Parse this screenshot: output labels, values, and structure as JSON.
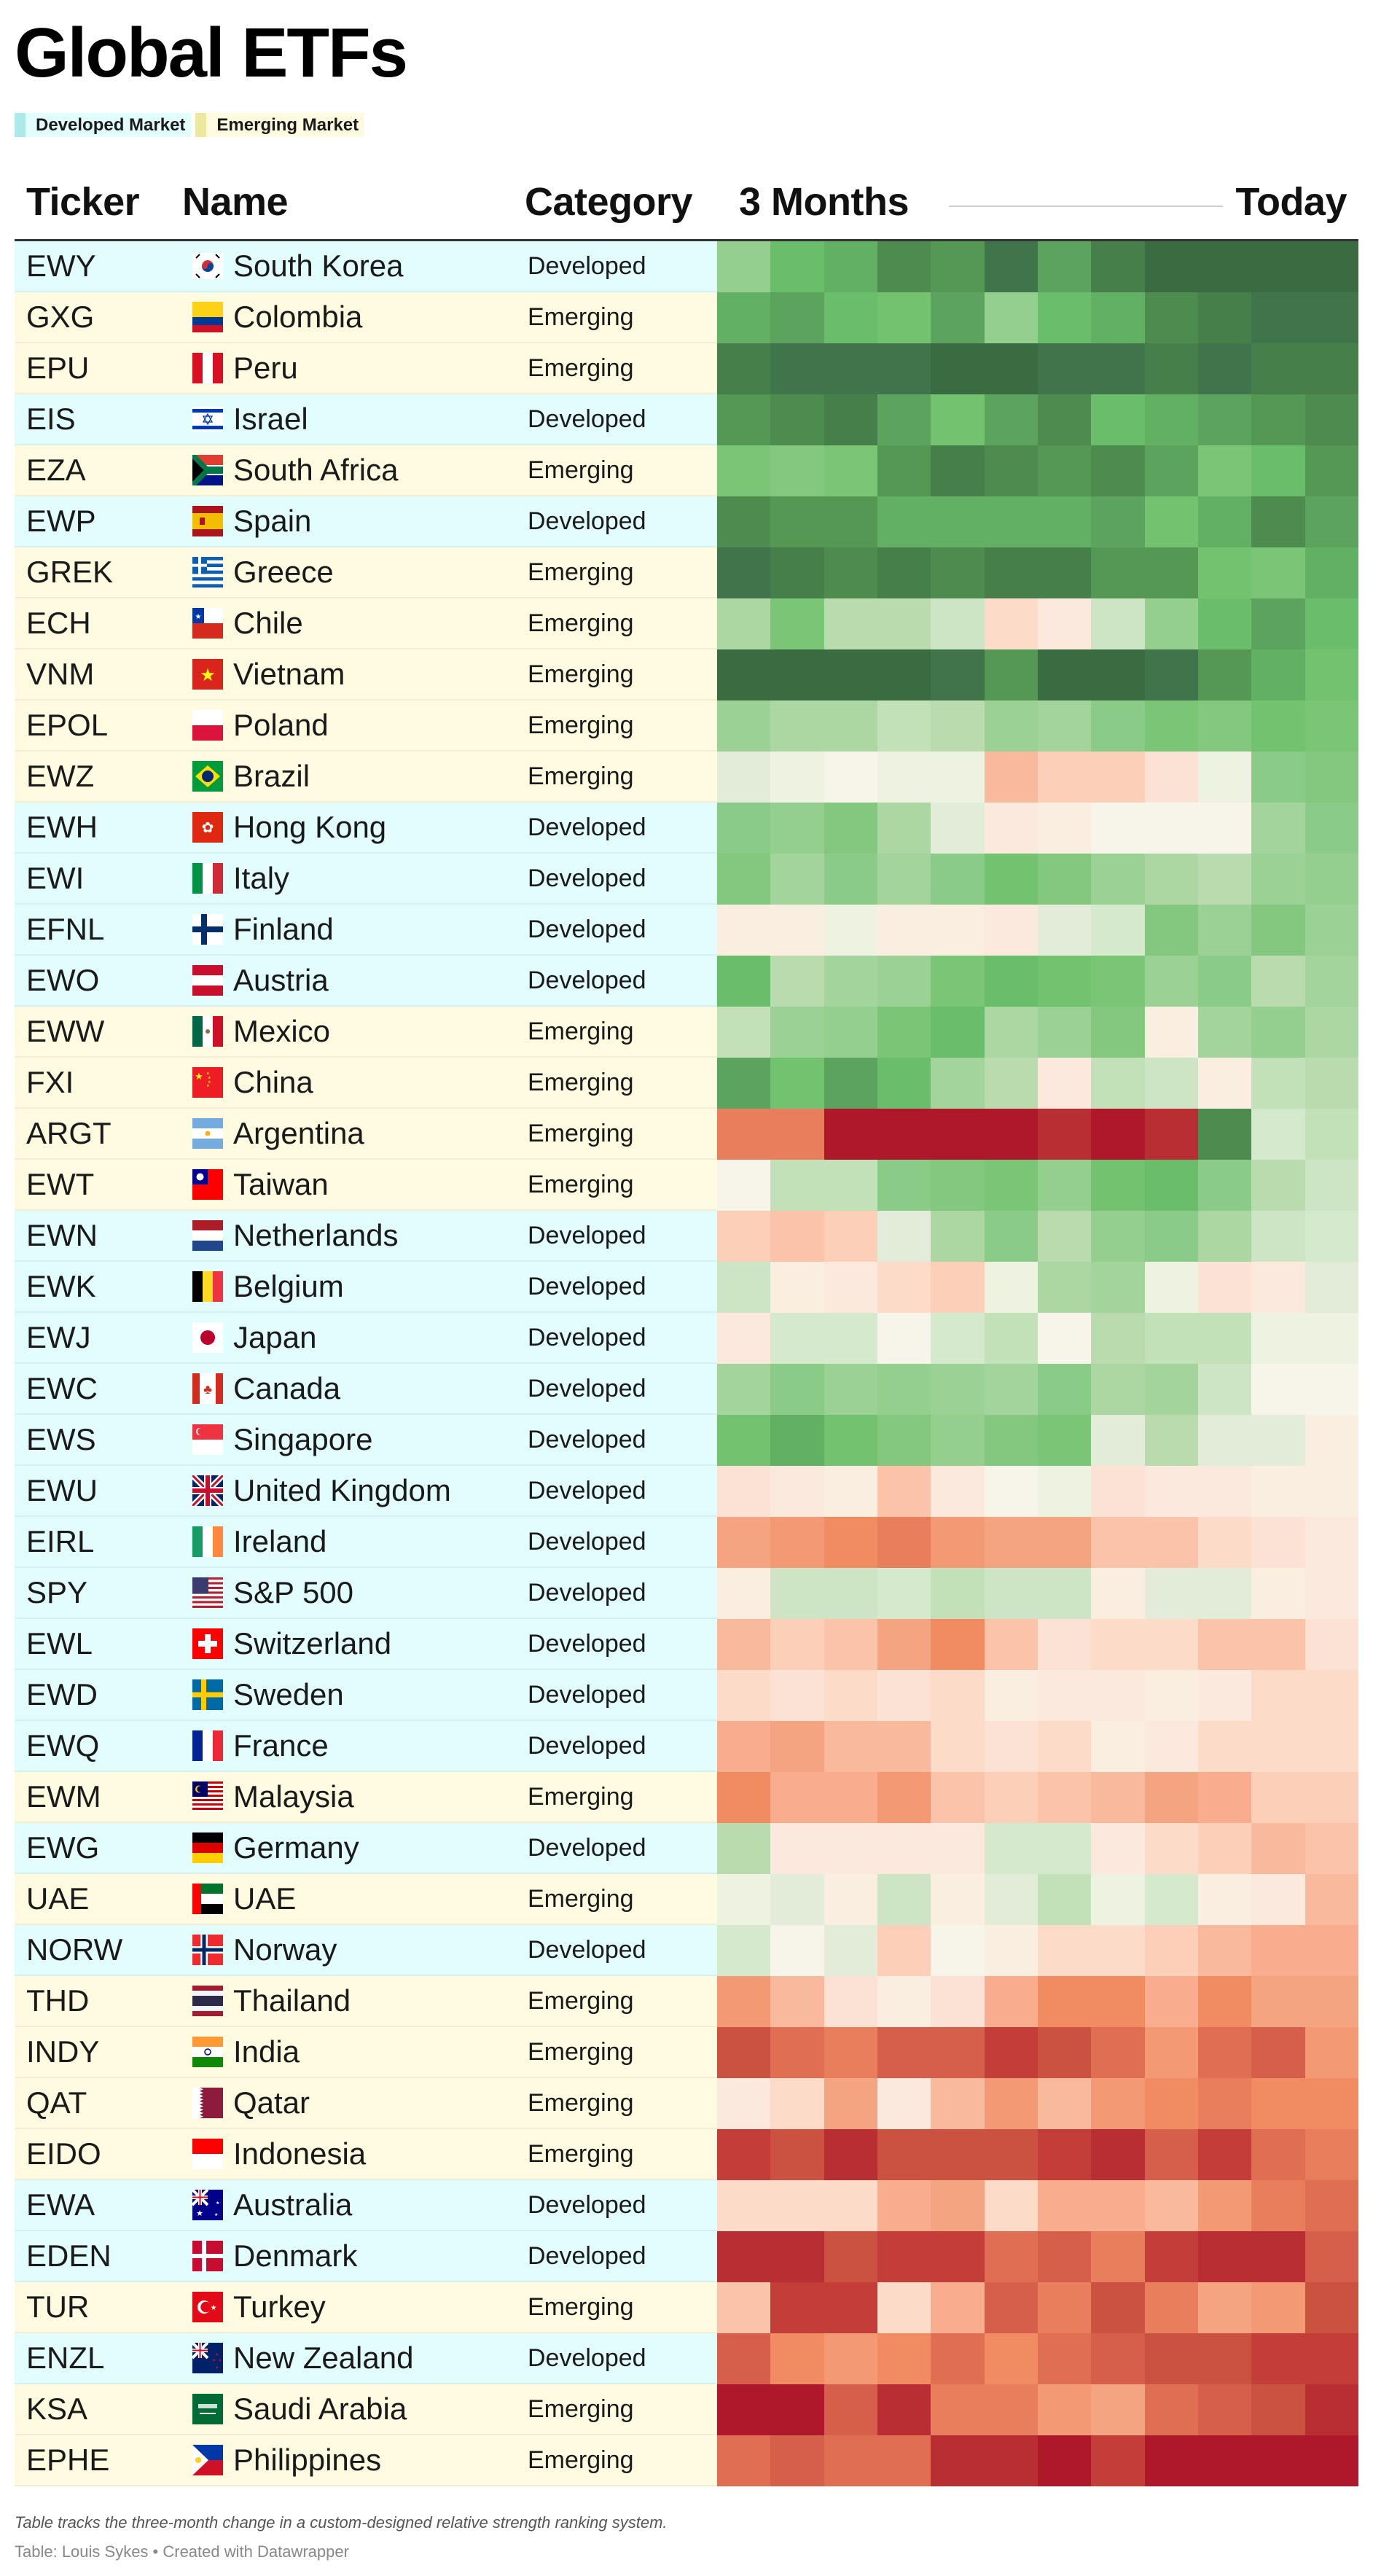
{
  "title": "Global ETFs",
  "legend": [
    {
      "label": "Developed Market",
      "swatch": "#aee9ea",
      "bg": "#e1fdfd"
    },
    {
      "label": "Emerging Market",
      "swatch": "#ece8a0",
      "bg": "#fffbe0"
    }
  ],
  "header": {
    "ticker": "Ticker",
    "name": "Name",
    "category": "Category",
    "start": "3 Months",
    "end": "Today"
  },
  "row_colors": {
    "Developed": "#e1fdfd",
    "Emerging": "#fffbe0"
  },
  "palette": [
    "#af172b",
    "#b92e33",
    "#c33e39",
    "#cb5141",
    "#d65f4b",
    "#e06e53",
    "#e87e5c",
    "#f08b62",
    "#f39a74",
    "#f5a481",
    "#f8ad8e",
    "#f8b99d",
    "#fbc3aa",
    "#fccfb9",
    "#fddbc9",
    "#fce2d4",
    "#fae9dc",
    "#f9eee0",
    "#f7f5ea",
    "#eef2e1",
    "#e2ecd8",
    "#d5e9cc",
    "#cde5c4",
    "#c2e1b8",
    "#b9dbae",
    "#acd7a2",
    "#a3d49c",
    "#9bd194",
    "#95cf8e",
    "#8bcb88",
    "#83c87e",
    "#7bc577",
    "#72c270",
    "#6abd6b",
    "#62b064",
    "#5ca35e",
    "#559854",
    "#4e8b4f",
    "#477f4a",
    "#40744a",
    "#3b6b41"
  ],
  "footer": {
    "note": "Table tracks the three-month change in a custom-designed relative strength ranking system.",
    "credit": "Table: Louis Sykes • Created with Datawrapper"
  },
  "chart_data": {
    "type": "heatmap",
    "title": "Global ETFs",
    "xlabel": "3 Months → Today",
    "value_description": "relative strength rank level (0 = weakest/dark red, 40 = strongest/dark green)",
    "range": [
      0,
      40
    ],
    "periods": 12,
    "rows": [
      {
        "ticker": "EWY",
        "name": "South Korea",
        "category": "Developed",
        "flag": "kr",
        "values": [
          28,
          33,
          34,
          37,
          36,
          39,
          35,
          38,
          40,
          40,
          40,
          40
        ]
      },
      {
        "ticker": "GXG",
        "name": "Colombia",
        "category": "Emerging",
        "flag": "co",
        "values": [
          34,
          35,
          33,
          32,
          35,
          28,
          33,
          34,
          37,
          38,
          39,
          39
        ]
      },
      {
        "ticker": "EPU",
        "name": "Peru",
        "category": "Emerging",
        "flag": "pe",
        "values": [
          38,
          39,
          39,
          39,
          40,
          40,
          39,
          39,
          38,
          39,
          38,
          38
        ]
      },
      {
        "ticker": "EIS",
        "name": "Israel",
        "category": "Developed",
        "flag": "il",
        "values": [
          36,
          37,
          38,
          35,
          32,
          35,
          37,
          33,
          34,
          35,
          36,
          37
        ]
      },
      {
        "ticker": "EZA",
        "name": "South Africa",
        "category": "Emerging",
        "flag": "za",
        "values": [
          31,
          30,
          31,
          36,
          38,
          37,
          36,
          37,
          35,
          31,
          33,
          36
        ]
      },
      {
        "ticker": "EWP",
        "name": "Spain",
        "category": "Developed",
        "flag": "es",
        "values": [
          37,
          36,
          36,
          34,
          34,
          34,
          34,
          35,
          32,
          34,
          37,
          35
        ]
      },
      {
        "ticker": "GREK",
        "name": "Greece",
        "category": "Emerging",
        "flag": "gr",
        "values": [
          39,
          38,
          37,
          38,
          37,
          38,
          38,
          36,
          36,
          32,
          31,
          34
        ]
      },
      {
        "ticker": "ECH",
        "name": "Chile",
        "category": "Emerging",
        "flag": "cl",
        "values": [
          25,
          31,
          24,
          24,
          22,
          14,
          16,
          22,
          28,
          33,
          35,
          33
        ]
      },
      {
        "ticker": "VNM",
        "name": "Vietnam",
        "category": "Emerging",
        "flag": "vn",
        "values": [
          40,
          40,
          40,
          40,
          39,
          36,
          40,
          40,
          39,
          36,
          34,
          32
        ]
      },
      {
        "ticker": "EPOL",
        "name": "Poland",
        "category": "Emerging",
        "flag": "pl",
        "values": [
          27,
          25,
          25,
          23,
          24,
          27,
          26,
          29,
          31,
          30,
          32,
          31
        ]
      },
      {
        "ticker": "EWZ",
        "name": "Brazil",
        "category": "Emerging",
        "flag": "br",
        "values": [
          20,
          19,
          18,
          19,
          19,
          11,
          13,
          13,
          15,
          19,
          29,
          30
        ]
      },
      {
        "ticker": "EWH",
        "name": "Hong Kong",
        "category": "Developed",
        "flag": "hk",
        "values": [
          29,
          28,
          30,
          25,
          20,
          16,
          17,
          18,
          18,
          18,
          26,
          29
        ]
      },
      {
        "ticker": "EWI",
        "name": "Italy",
        "category": "Developed",
        "flag": "it",
        "values": [
          30,
          26,
          29,
          26,
          29,
          32,
          30,
          27,
          25,
          24,
          27,
          28
        ]
      },
      {
        "ticker": "EFNL",
        "name": "Finland",
        "category": "Developed",
        "flag": "fi",
        "values": [
          17,
          17,
          19,
          17,
          17,
          16,
          20,
          21,
          30,
          27,
          30,
          27
        ]
      },
      {
        "ticker": "EWO",
        "name": "Austria",
        "category": "Developed",
        "flag": "at",
        "values": [
          33,
          24,
          26,
          27,
          31,
          33,
          32,
          31,
          27,
          29,
          24,
          26
        ]
      },
      {
        "ticker": "EWW",
        "name": "Mexico",
        "category": "Emerging",
        "flag": "mx",
        "values": [
          23,
          27,
          28,
          31,
          33,
          25,
          27,
          30,
          17,
          26,
          28,
          25
        ]
      },
      {
        "ticker": "FXI",
        "name": "China",
        "category": "Emerging",
        "flag": "cn",
        "values": [
          35,
          32,
          35,
          33,
          26,
          24,
          16,
          23,
          22,
          17,
          23,
          24
        ]
      },
      {
        "ticker": "ARGT",
        "name": "Argentina",
        "category": "Emerging",
        "flag": "ar",
        "values": [
          6,
          6,
          0,
          0,
          0,
          0,
          1,
          0,
          1,
          37,
          21,
          23
        ]
      },
      {
        "ticker": "EWT",
        "name": "Taiwan",
        "category": "Emerging",
        "flag": "tw",
        "values": [
          18,
          23,
          23,
          29,
          30,
          31,
          28,
          32,
          33,
          29,
          24,
          22
        ]
      },
      {
        "ticker": "EWN",
        "name": "Netherlands",
        "category": "Developed",
        "flag": "nl",
        "values": [
          13,
          12,
          13,
          20,
          25,
          29,
          24,
          28,
          29,
          25,
          22,
          21
        ]
      },
      {
        "ticker": "EWK",
        "name": "Belgium",
        "category": "Developed",
        "flag": "be",
        "values": [
          22,
          17,
          16,
          14,
          13,
          19,
          25,
          26,
          19,
          15,
          16,
          20
        ]
      },
      {
        "ticker": "EWJ",
        "name": "Japan",
        "category": "Developed",
        "flag": "jp",
        "values": [
          16,
          21,
          21,
          18,
          21,
          23,
          18,
          24,
          23,
          23,
          19,
          19
        ]
      },
      {
        "ticker": "EWC",
        "name": "Canada",
        "category": "Developed",
        "flag": "ca",
        "values": [
          26,
          29,
          27,
          28,
          27,
          26,
          29,
          25,
          26,
          22,
          18,
          18
        ]
      },
      {
        "ticker": "EWS",
        "name": "Singapore",
        "category": "Developed",
        "flag": "sg",
        "values": [
          32,
          34,
          32,
          30,
          28,
          30,
          31,
          20,
          24,
          20,
          20,
          17
        ]
      },
      {
        "ticker": "EWU",
        "name": "United Kingdom",
        "category": "Developed",
        "flag": "gb",
        "values": [
          15,
          16,
          17,
          12,
          16,
          18,
          19,
          15,
          16,
          16,
          17,
          17
        ]
      },
      {
        "ticker": "EIRL",
        "name": "Ireland",
        "category": "Developed",
        "flag": "ie",
        "values": [
          9,
          8,
          7,
          6,
          8,
          9,
          9,
          12,
          12,
          14,
          15,
          16
        ]
      },
      {
        "ticker": "SPY",
        "name": "S&P 500",
        "category": "Developed",
        "flag": "us",
        "values": [
          17,
          22,
          22,
          21,
          23,
          22,
          22,
          17,
          20,
          20,
          17,
          16
        ]
      },
      {
        "ticker": "EWL",
        "name": "Switzerland",
        "category": "Developed",
        "flag": "ch",
        "values": [
          11,
          13,
          12,
          9,
          7,
          12,
          15,
          14,
          14,
          12,
          12,
          15
        ]
      },
      {
        "ticker": "EWD",
        "name": "Sweden",
        "category": "Developed",
        "flag": "se",
        "values": [
          14,
          15,
          14,
          15,
          14,
          17,
          16,
          16,
          17,
          16,
          14,
          14
        ]
      },
      {
        "ticker": "EWQ",
        "name": "France",
        "category": "Developed",
        "flag": "fr",
        "values": [
          10,
          9,
          11,
          11,
          14,
          15,
          14,
          17,
          16,
          14,
          14,
          14
        ]
      },
      {
        "ticker": "EWM",
        "name": "Malaysia",
        "category": "Emerging",
        "flag": "my",
        "values": [
          7,
          10,
          10,
          8,
          12,
          13,
          12,
          11,
          9,
          10,
          13,
          13
        ]
      },
      {
        "ticker": "EWG",
        "name": "Germany",
        "category": "Developed",
        "flag": "de",
        "values": [
          24,
          16,
          16,
          16,
          16,
          21,
          21,
          16,
          14,
          13,
          11,
          12
        ]
      },
      {
        "ticker": "UAE",
        "name": "UAE",
        "category": "Emerging",
        "flag": "ae",
        "values": [
          19,
          20,
          17,
          22,
          17,
          20,
          23,
          19,
          21,
          17,
          16,
          11
        ]
      },
      {
        "ticker": "NORW",
        "name": "Norway",
        "category": "Developed",
        "flag": "no",
        "values": [
          21,
          18,
          20,
          13,
          18,
          17,
          14,
          14,
          13,
          11,
          10,
          10
        ]
      },
      {
        "ticker": "THD",
        "name": "Thailand",
        "category": "Emerging",
        "flag": "th",
        "values": [
          8,
          11,
          15,
          17,
          15,
          10,
          7,
          7,
          10,
          7,
          9,
          9
        ]
      },
      {
        "ticker": "INDY",
        "name": "India",
        "category": "Emerging",
        "flag": "in",
        "values": [
          3,
          5,
          6,
          4,
          4,
          2,
          3,
          5,
          8,
          5,
          4,
          8
        ]
      },
      {
        "ticker": "QAT",
        "name": "Qatar",
        "category": "Emerging",
        "flag": "qa",
        "values": [
          16,
          14,
          9,
          16,
          11,
          8,
          11,
          8,
          7,
          6,
          7,
          7
        ]
      },
      {
        "ticker": "EIDO",
        "name": "Indonesia",
        "category": "Emerging",
        "flag": "id",
        "values": [
          2,
          3,
          1,
          3,
          3,
          3,
          2,
          1,
          4,
          2,
          5,
          6
        ]
      },
      {
        "ticker": "EWA",
        "name": "Australia",
        "category": "Developed",
        "flag": "au",
        "values": [
          14,
          14,
          14,
          10,
          9,
          14,
          10,
          10,
          11,
          8,
          6,
          5
        ]
      },
      {
        "ticker": "EDEN",
        "name": "Denmark",
        "category": "Developed",
        "flag": "dk",
        "values": [
          1,
          1,
          3,
          2,
          2,
          5,
          4,
          6,
          2,
          1,
          1,
          4
        ]
      },
      {
        "ticker": "TUR",
        "name": "Turkey",
        "category": "Emerging",
        "flag": "tr",
        "values": [
          12,
          2,
          2,
          14,
          10,
          4,
          6,
          3,
          6,
          9,
          8,
          3
        ]
      },
      {
        "ticker": "ENZL",
        "name": "New Zealand",
        "category": "Developed",
        "flag": "nz",
        "values": [
          4,
          7,
          8,
          7,
          5,
          7,
          5,
          4,
          3,
          3,
          2,
          2
        ]
      },
      {
        "ticker": "KSA",
        "name": "Saudi Arabia",
        "category": "Emerging",
        "flag": "sa",
        "values": [
          0,
          0,
          4,
          1,
          6,
          6,
          8,
          9,
          5,
          4,
          3,
          1
        ]
      },
      {
        "ticker": "EPHE",
        "name": "Philippines",
        "category": "Emerging",
        "flag": "ph",
        "values": [
          5,
          4,
          5,
          5,
          1,
          1,
          0,
          2,
          0,
          0,
          0,
          0
        ]
      }
    ]
  }
}
